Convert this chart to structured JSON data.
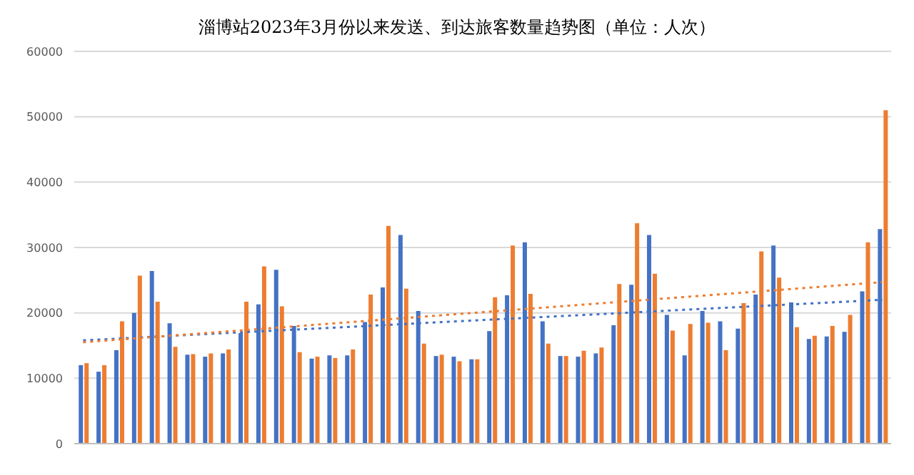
{
  "chart_data": {
    "type": "bar",
    "title": "淄博站2023年3月份以来发送、到达旅客数量趋势图（单位：人次）",
    "categories": [
      null,
      null,
      null,
      null,
      null,
      null,
      null,
      null,
      null,
      null,
      null,
      null,
      null,
      null,
      null,
      null,
      null,
      null,
      null,
      null,
      null,
      null,
      null,
      null,
      null,
      null,
      null,
      null,
      null,
      null,
      null,
      null,
      null,
      null,
      null,
      null,
      null,
      null,
      null,
      null,
      null,
      null,
      null,
      null,
      null,
      null
    ],
    "series": [
      {
        "color": "#4472c4",
        "values": [
          12000,
          11000,
          14300,
          20000,
          26400,
          18400,
          13600,
          13300,
          13800,
          16900,
          21300,
          26600,
          18000,
          13000,
          13500,
          13500,
          18600,
          23900,
          31900,
          20300,
          13400,
          13300,
          12900,
          17200,
          22700,
          30800,
          18700,
          13400,
          13300,
          13800,
          18100,
          24300,
          31900,
          19700,
          13500,
          20300,
          18700,
          17600,
          22800,
          30300,
          21600,
          16000,
          16400,
          17100,
          23300,
          32800
        ]
      },
      {
        "color": "#ed7d31",
        "values": [
          12300,
          12000,
          18700,
          25700,
          21700,
          14800,
          13700,
          13800,
          14400,
          21700,
          27100,
          21000,
          14000,
          13300,
          13100,
          14400,
          22800,
          33300,
          23700,
          15300,
          13600,
          12600,
          12900,
          22400,
          30300,
          22900,
          15300,
          13400,
          14200,
          14700,
          24400,
          33700,
          26000,
          17300,
          18300,
          18500,
          14300,
          21500,
          29400,
          25400,
          17800,
          16500,
          18000,
          19700,
          30800,
          51000
        ]
      },
      {
        "type": "line",
        "color": "#4472c4",
        "line_style": "dotted",
        "values": [
          15800,
          null,
          null,
          null,
          null,
          null,
          null,
          null,
          null,
          null,
          null,
          null,
          null,
          null,
          null,
          null,
          null,
          null,
          null,
          null,
          null,
          null,
          null,
          null,
          null,
          null,
          null,
          null,
          null,
          null,
          null,
          null,
          null,
          null,
          null,
          null,
          null,
          null,
          null,
          null,
          null,
          null,
          null,
          null,
          null,
          22000
        ]
      },
      {
        "type": "line",
        "color": "#ed7d31",
        "line_style": "dotted",
        "values": [
          15500,
          null,
          null,
          null,
          null,
          null,
          null,
          null,
          null,
          null,
          null,
          null,
          null,
          null,
          null,
          null,
          null,
          null,
          null,
          null,
          null,
          null,
          null,
          null,
          null,
          null,
          null,
          null,
          null,
          null,
          null,
          null,
          null,
          null,
          null,
          null,
          null,
          null,
          null,
          null,
          null,
          null,
          null,
          null,
          null,
          24700
        ]
      }
    ],
    "ylim": [
      0,
      60000
    ],
    "yticks": [
      0,
      10000,
      20000,
      30000,
      40000,
      50000,
      60000
    ],
    "grid": "y",
    "legend": false,
    "marker": "none"
  }
}
